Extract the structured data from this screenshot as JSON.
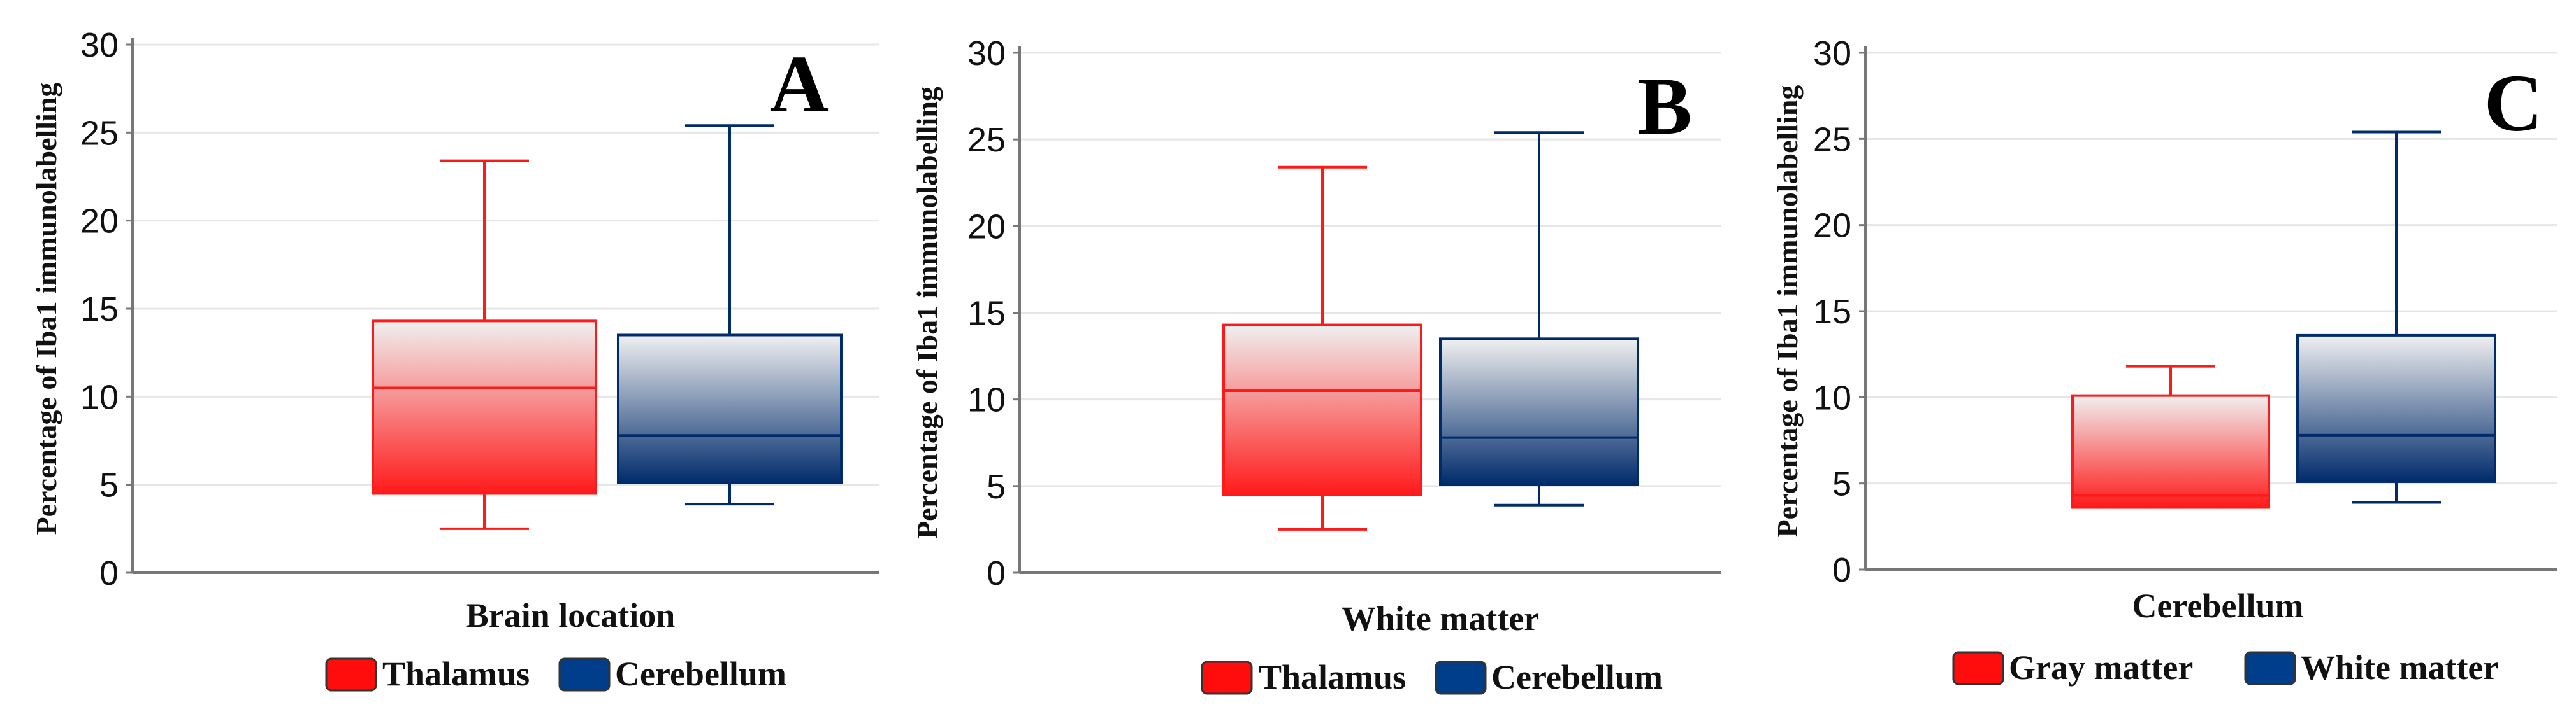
{
  "colors": {
    "red": "#ff1a1a",
    "blue": "#002b6b",
    "light": "#f0f0f0",
    "axis": "#777777",
    "grid": "#e6e6e6"
  },
  "chart_data": [
    {
      "type": "box",
      "panel_label": "A",
      "ylabel": "Percentage of Iba1 immunolabelling",
      "xlabel": "Brain location",
      "ylim": [
        0,
        30
      ],
      "yticks": [
        "0",
        "5",
        "10",
        "15",
        "20",
        "25",
        "30"
      ],
      "grid": true,
      "legend_position": "bottom",
      "series": [
        {
          "name": "Thalamus",
          "color": "red",
          "min": 2.5,
          "q1": 4.5,
          "median": 10.5,
          "q3": 14.3,
          "max": 23.4
        },
        {
          "name": "Cerebellum",
          "color": "blue",
          "min": 3.9,
          "q1": 5.1,
          "median": 7.8,
          "q3": 13.5,
          "max": 25.4
        }
      ]
    },
    {
      "type": "box",
      "panel_label": "B",
      "ylabel": "Percentage of Iba1 immunolabelling",
      "xlabel": "White matter",
      "ylim": [
        0,
        30
      ],
      "yticks": [
        "0",
        "5",
        "10",
        "15",
        "20",
        "25",
        "30"
      ],
      "grid": true,
      "legend_position": "bottom",
      "series": [
        {
          "name": "Thalamus",
          "color": "red",
          "min": 2.5,
          "q1": 4.5,
          "median": 10.5,
          "q3": 14.3,
          "max": 23.4
        },
        {
          "name": "Cerebellum",
          "color": "blue",
          "min": 3.9,
          "q1": 5.1,
          "median": 7.8,
          "q3": 13.5,
          "max": 25.4
        }
      ]
    },
    {
      "type": "box",
      "panel_label": "C",
      "ylabel": "Percentage of Iba1 immunolabelling",
      "xlabel": "Cerebellum",
      "ylim": [
        0,
        30
      ],
      "yticks": [
        "0",
        "5",
        "10",
        "15",
        "20",
        "25",
        "30"
      ],
      "grid": true,
      "legend_position": "bottom",
      "series": [
        {
          "name": "Gray matter",
          "color": "red",
          "min": 3.6,
          "q1": 3.6,
          "median": 4.3,
          "q3": 10.1,
          "max": 11.8
        },
        {
          "name": "White matter",
          "color": "blue",
          "min": 3.9,
          "q1": 5.1,
          "median": 7.8,
          "q3": 13.6,
          "max": 25.4
        }
      ]
    }
  ]
}
